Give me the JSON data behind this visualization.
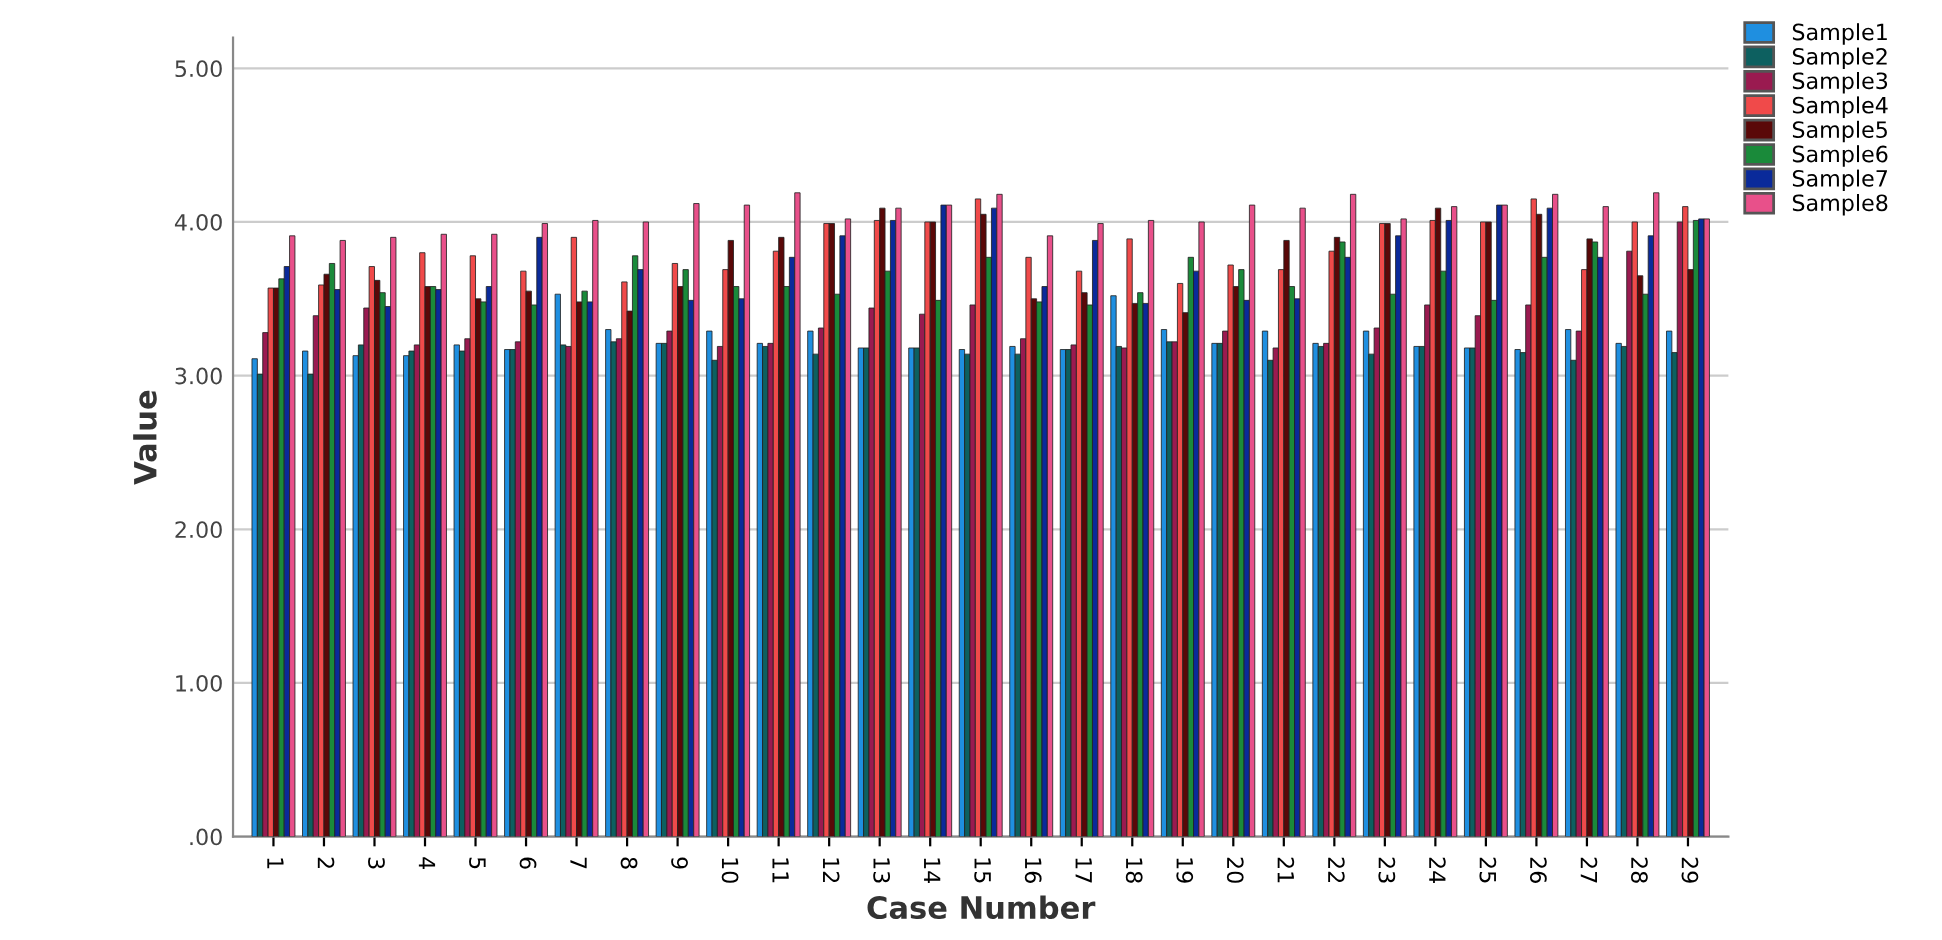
{
  "chart_data": {
    "type": "bar",
    "xlabel": "Case Number",
    "ylabel": "Value",
    "categories": [
      "1",
      "2",
      "3",
      "4",
      "5",
      "6",
      "7",
      "8",
      "9",
      "10",
      "11",
      "12",
      "13",
      "14",
      "15",
      "16",
      "17",
      "18",
      "19",
      "20",
      "21",
      "22",
      "23",
      "24",
      "25",
      "26",
      "27",
      "28",
      "29"
    ],
    "series": [
      {
        "name": "Sample1",
        "color": "#1f8fe0",
        "values": [
          3.11,
          3.16,
          3.13,
          3.13,
          3.2,
          3.17,
          3.53,
          3.3,
          3.21,
          3.29,
          3.21,
          3.29,
          3.18,
          3.18,
          3.17,
          3.19,
          3.17,
          3.52,
          3.3,
          3.21,
          3.29,
          3.21,
          3.29,
          3.19,
          3.18,
          3.17,
          3.3,
          3.21,
          3.29
        ]
      },
      {
        "name": "Sample2",
        "color": "#0d6060",
        "values": [
          3.01,
          3.01,
          3.2,
          3.16,
          3.16,
          3.17,
          3.2,
          3.22,
          3.21,
          3.1,
          3.19,
          3.14,
          3.18,
          3.18,
          3.14,
          3.14,
          3.17,
          3.19,
          3.22,
          3.21,
          3.1,
          3.19,
          3.14,
          3.19,
          3.18,
          3.15,
          3.1,
          3.19,
          3.15
        ]
      },
      {
        "name": "Sample3",
        "color": "#9a1a50",
        "values": [
          3.28,
          3.39,
          3.44,
          3.2,
          3.24,
          3.22,
          3.19,
          3.24,
          3.29,
          3.19,
          3.21,
          3.31,
          3.44,
          3.4,
          3.46,
          3.24,
          3.2,
          3.18,
          3.22,
          3.29,
          3.18,
          3.21,
          3.31,
          3.46,
          3.39,
          3.46,
          3.29,
          3.81,
          4.0
        ]
      },
      {
        "name": "Sample4",
        "color": "#f04a4a",
        "values": [
          3.57,
          3.59,
          3.71,
          3.8,
          3.78,
          3.68,
          3.9,
          3.61,
          3.73,
          3.69,
          3.81,
          3.99,
          4.01,
          4.0,
          4.15,
          3.77,
          3.68,
          3.89,
          3.6,
          3.72,
          3.69,
          3.81,
          3.99,
          4.01,
          4.0,
          4.15,
          3.69,
          4.0,
          4.1
        ]
      },
      {
        "name": "Sample5",
        "color": "#5a0808",
        "values": [
          3.57,
          3.66,
          3.62,
          3.58,
          3.5,
          3.55,
          3.48,
          3.42,
          3.58,
          3.88,
          3.9,
          3.99,
          4.09,
          4.0,
          4.05,
          3.5,
          3.54,
          3.47,
          3.41,
          3.58,
          3.88,
          3.9,
          3.99,
          4.09,
          4.0,
          4.05,
          3.89,
          3.65,
          3.69
        ]
      },
      {
        "name": "Sample6",
        "color": "#1a8a3a",
        "values": [
          3.63,
          3.73,
          3.54,
          3.58,
          3.48,
          3.46,
          3.55,
          3.78,
          3.69,
          3.58,
          3.58,
          3.53,
          3.68,
          3.49,
          3.77,
          3.48,
          3.46,
          3.54,
          3.77,
          3.69,
          3.58,
          3.87,
          3.53,
          3.68,
          3.49,
          3.77,
          3.87,
          3.53,
          4.01
        ]
      },
      {
        "name": "Sample7",
        "color": "#0a2a9a",
        "values": [
          3.71,
          3.56,
          3.45,
          3.56,
          3.58,
          3.9,
          3.48,
          3.69,
          3.49,
          3.5,
          3.77,
          3.91,
          4.01,
          4.11,
          4.09,
          3.58,
          3.88,
          3.47,
          3.68,
          3.49,
          3.5,
          3.77,
          3.91,
          4.01,
          4.11,
          4.09,
          3.77,
          3.91,
          4.02
        ]
      },
      {
        "name": "Sample8",
        "color": "#e8508a",
        "values": [
          3.91,
          3.88,
          3.9,
          3.92,
          3.92,
          3.99,
          4.01,
          4.0,
          4.12,
          4.11,
          4.19,
          4.02,
          4.09,
          4.11,
          4.18,
          3.91,
          3.99,
          4.01,
          4.0,
          4.11,
          4.09,
          4.18,
          4.02,
          4.1,
          4.11,
          4.18,
          4.1,
          4.19,
          4.02
        ]
      }
    ],
    "ylim": [
      0,
      5.2
    ],
    "yticks": [
      {
        "value": 0,
        "label": ".00"
      },
      {
        "value": 1,
        "label": "1.00"
      },
      {
        "value": 2,
        "label": "2.00"
      },
      {
        "value": 3,
        "label": "3.00"
      },
      {
        "value": 4,
        "label": "4.00"
      },
      {
        "value": 5,
        "label": "5.00"
      }
    ],
    "grid": "y",
    "legend": "top right"
  }
}
